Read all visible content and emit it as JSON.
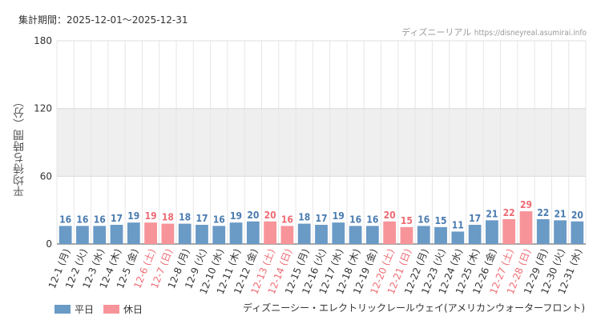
{
  "header": {
    "period": "集計期間：2025-12-01～2025-12-31",
    "source_name": "ディズニーリアル",
    "source_url": "https://disneyreal.asumirai.info"
  },
  "footer": {
    "attraction": "ディズニーシー・エレクトリックレールウェイ(アメリカンウォーターフロント)"
  },
  "colors": {
    "weekday": "#6a9ac6",
    "holiday": "#f7949a",
    "weekday_text": "#4a7bb0",
    "holiday_text": "#ee6b73",
    "band": "#efefef"
  },
  "chart_data": {
    "type": "bar",
    "ylabel": "平均待ち時間（分）",
    "ylim": [
      0,
      180
    ],
    "yticks": [
      0,
      60,
      120,
      180
    ],
    "grid": true,
    "legend_position": "bottom-left",
    "legend": [
      {
        "key": "weekday",
        "label": "平日"
      },
      {
        "key": "holiday",
        "label": "休日"
      }
    ],
    "categories": [
      "12-1 (月)",
      "12-2 (火)",
      "12-3 (水)",
      "12-4 (木)",
      "12-5 (金)",
      "12-6 (土)",
      "12-7 (日)",
      "12-8 (月)",
      "12-9 (火)",
      "12-10 (水)",
      "12-11 (木)",
      "12-12 (金)",
      "12-13 (土)",
      "12-14 (日)",
      "12-15 (月)",
      "12-16 (火)",
      "12-17 (水)",
      "12-18 (木)",
      "12-19 (金)",
      "12-20 (土)",
      "12-21 (日)",
      "12-22 (月)",
      "12-23 (火)",
      "12-24 (水)",
      "12-25 (木)",
      "12-26 (金)",
      "12-27 (土)",
      "12-28 (日)",
      "12-29 (月)",
      "12-30 (火)",
      "12-31 (水)"
    ],
    "values": [
      16,
      16,
      16,
      17,
      19,
      19,
      18,
      18,
      17,
      16,
      19,
      20,
      20,
      16,
      18,
      17,
      19,
      16,
      16,
      20,
      15,
      16,
      15,
      11,
      17,
      21,
      22,
      29,
      22,
      21,
      20
    ],
    "day_type": [
      "weekday",
      "weekday",
      "weekday",
      "weekday",
      "weekday",
      "holiday",
      "holiday",
      "weekday",
      "weekday",
      "weekday",
      "weekday",
      "weekday",
      "holiday",
      "holiday",
      "weekday",
      "weekday",
      "weekday",
      "weekday",
      "weekday",
      "holiday",
      "holiday",
      "weekday",
      "weekday",
      "weekday",
      "weekday",
      "weekday",
      "holiday",
      "holiday",
      "weekday",
      "weekday",
      "weekday"
    ]
  }
}
